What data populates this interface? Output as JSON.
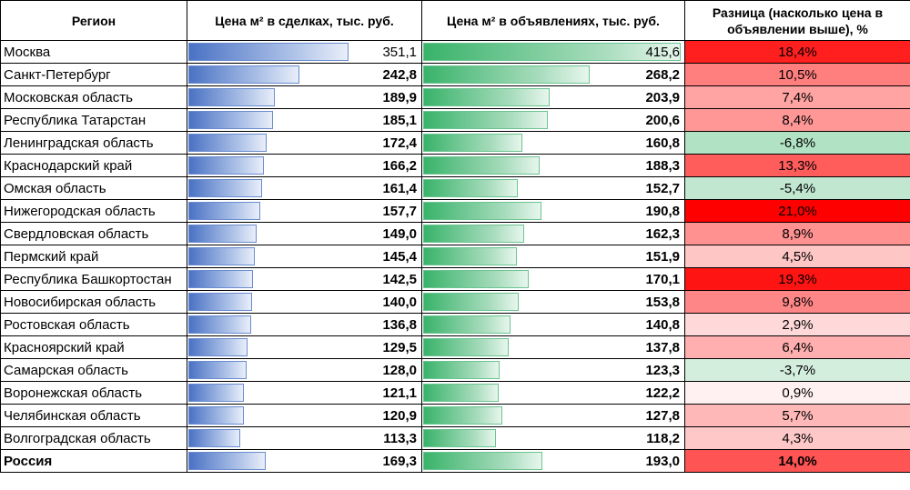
{
  "headers": {
    "region": "Регион",
    "deal": "Цена м² в сделках, тыс. руб.",
    "ad": "Цена м² в объявлениях, тыс. руб.",
    "diff": "Разница (насколько цена в объявлении выше), %"
  },
  "colors": {
    "deal_bar": "#4a72c4",
    "ad_bar": "#39b36a",
    "diff_positive_max": "#ff0000",
    "diff_negative": "#b9e3c8"
  },
  "chart_data": {
    "type": "table",
    "deal_max": 351.1,
    "ad_max": 415.6,
    "rows": [
      {
        "region": "Москва",
        "deal": 351.1,
        "deal_label": "351,1",
        "ad": 415.6,
        "ad_label": "415,6",
        "diff": 18.4,
        "diff_label": "18,4%"
      },
      {
        "region": "Санкт-Петербург",
        "deal": 242.8,
        "deal_label": "242,8",
        "ad": 268.2,
        "ad_label": "268,2",
        "diff": 10.5,
        "diff_label": "10,5%"
      },
      {
        "region": "Московская область",
        "deal": 189.9,
        "deal_label": "189,9",
        "ad": 203.9,
        "ad_label": "203,9",
        "diff": 7.4,
        "diff_label": "7,4%"
      },
      {
        "region": "Республика Татарстан",
        "deal": 185.1,
        "deal_label": "185,1",
        "ad": 200.6,
        "ad_label": "200,6",
        "diff": 8.4,
        "diff_label": "8,4%"
      },
      {
        "region": "Ленинградская область",
        "deal": 172.4,
        "deal_label": "172,4",
        "ad": 160.8,
        "ad_label": "160,8",
        "diff": -6.8,
        "diff_label": "-6,8%"
      },
      {
        "region": "Краснодарский край",
        "deal": 166.2,
        "deal_label": "166,2",
        "ad": 188.3,
        "ad_label": "188,3",
        "diff": 13.3,
        "diff_label": "13,3%"
      },
      {
        "region": "Омская область",
        "deal": 161.4,
        "deal_label": "161,4",
        "ad": 152.7,
        "ad_label": "152,7",
        "diff": -5.4,
        "diff_label": "-5,4%"
      },
      {
        "region": "Нижегородская область",
        "deal": 157.7,
        "deal_label": "157,7",
        "ad": 190.8,
        "ad_label": "190,8",
        "diff": 21.0,
        "diff_label": "21,0%"
      },
      {
        "region": "Свердловская область",
        "deal": 149.0,
        "deal_label": "149,0",
        "ad": 162.3,
        "ad_label": "162,3",
        "diff": 8.9,
        "diff_label": "8,9%"
      },
      {
        "region": "Пермский край",
        "deal": 145.4,
        "deal_label": "145,4",
        "ad": 151.9,
        "ad_label": "151,9",
        "diff": 4.5,
        "diff_label": "4,5%"
      },
      {
        "region": "Республика Башкортостан",
        "deal": 142.5,
        "deal_label": "142,5",
        "ad": 170.1,
        "ad_label": "170,1",
        "diff": 19.3,
        "diff_label": "19,3%"
      },
      {
        "region": "Новосибирская область",
        "deal": 140.0,
        "deal_label": "140,0",
        "ad": 153.8,
        "ad_label": "153,8",
        "diff": 9.8,
        "diff_label": "9,8%"
      },
      {
        "region": "Ростовская область",
        "deal": 136.8,
        "deal_label": "136,8",
        "ad": 140.8,
        "ad_label": "140,8",
        "diff": 2.9,
        "diff_label": "2,9%"
      },
      {
        "region": "Красноярский край",
        "deal": 129.5,
        "deal_label": "129,5",
        "ad": 137.8,
        "ad_label": "137,8",
        "diff": 6.4,
        "diff_label": "6,4%"
      },
      {
        "region": "Самарская область",
        "deal": 128.0,
        "deal_label": "128,0",
        "ad": 123.3,
        "ad_label": "123,3",
        "diff": -3.7,
        "diff_label": "-3,7%"
      },
      {
        "region": "Воронежская область",
        "deal": 121.1,
        "deal_label": "121,1",
        "ad": 122.2,
        "ad_label": "122,2",
        "diff": 0.9,
        "diff_label": "0,9%"
      },
      {
        "region": "Челябинская область",
        "deal": 120.9,
        "deal_label": "120,9",
        "ad": 127.8,
        "ad_label": "127,8",
        "diff": 5.7,
        "diff_label": "5,7%"
      },
      {
        "region": "Волгоградская область",
        "deal": 113.3,
        "deal_label": "113,3",
        "ad": 118.2,
        "ad_label": "118,2",
        "diff": 4.3,
        "diff_label": "4,3%"
      },
      {
        "region": "Россия",
        "deal": 169.3,
        "deal_label": "169,3",
        "ad": 193.0,
        "ad_label": "193,0",
        "diff": 14.0,
        "diff_label": "14,0%",
        "total": true
      }
    ]
  }
}
